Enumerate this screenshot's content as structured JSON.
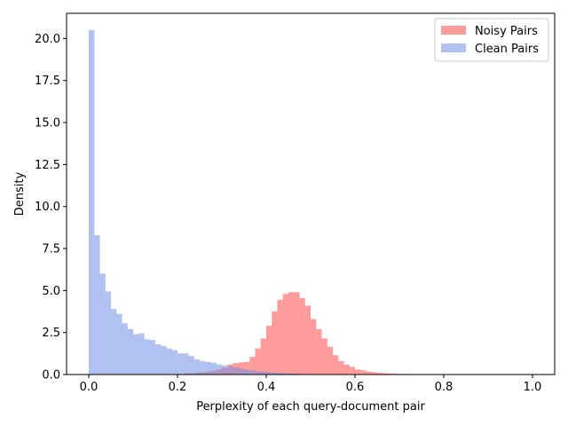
{
  "chart_data": {
    "type": "histogram",
    "title": "",
    "xlabel": "Perplexity of each query-document pair",
    "ylabel": "Density",
    "xlim": [
      -0.05,
      1.05
    ],
    "ylim": [
      0,
      21.5
    ],
    "xticks": [
      "0.0",
      "0.2",
      "0.4",
      "0.6",
      "0.8",
      "1.0"
    ],
    "yticks": [
      "0.0",
      "2.5",
      "5.0",
      "7.5",
      "10.0",
      "12.5",
      "15.0",
      "17.5",
      "20.0"
    ],
    "grid": false,
    "legend_position": "top-right",
    "series": [
      {
        "name": "Noisy Pairs",
        "color": "#ff6666",
        "alpha": 0.65,
        "bin_start": 0.0,
        "bin_width": 0.0125,
        "values": [
          0,
          0,
          0,
          0,
          0,
          0,
          0,
          0,
          0,
          0,
          0,
          0,
          0,
          0,
          0,
          0.02,
          0.03,
          0.05,
          0.07,
          0.1,
          0.13,
          0.17,
          0.22,
          0.3,
          0.42,
          0.6,
          0.68,
          0.72,
          0.75,
          1.05,
          1.55,
          2.15,
          2.9,
          3.75,
          4.45,
          4.8,
          4.9,
          4.9,
          4.55,
          4.1,
          3.3,
          2.7,
          2.15,
          1.65,
          1.15,
          0.8,
          0.58,
          0.45,
          0.3,
          0.25,
          0.18,
          0.14,
          0.1,
          0.08,
          0.06,
          0.05,
          0.04,
          0.03,
          0.03,
          0.02,
          0.02,
          0.01,
          0.01,
          0.01,
          0.01,
          0.01,
          0.01,
          0.01,
          0,
          0,
          0,
          0,
          0,
          0,
          0,
          0,
          0,
          0,
          0,
          0
        ]
      },
      {
        "name": "Clean Pairs",
        "color": "#6f8ee8",
        "alpha": 0.55,
        "bin_start": 0.0,
        "bin_width": 0.0125,
        "values": [
          20.5,
          8.3,
          6.0,
          4.95,
          3.9,
          3.6,
          3.05,
          2.7,
          2.4,
          2.45,
          2.1,
          2.05,
          1.8,
          1.7,
          1.55,
          1.45,
          1.25,
          1.25,
          1.1,
          0.9,
          0.8,
          0.75,
          0.7,
          0.6,
          0.55,
          0.5,
          0.42,
          0.35,
          0.3,
          0.25,
          0.2,
          0.17,
          0.14,
          0.12,
          0.1,
          0.08,
          0.06,
          0.05,
          0.04,
          0.03,
          0.02,
          0.02,
          0.01,
          0.01,
          0.01,
          0,
          0,
          0,
          0,
          0,
          0,
          0,
          0,
          0,
          0,
          0,
          0,
          0,
          0,
          0,
          0,
          0,
          0,
          0,
          0,
          0,
          0,
          0,
          0,
          0,
          0,
          0,
          0,
          0,
          0,
          0,
          0,
          0,
          0,
          0
        ]
      }
    ]
  }
}
